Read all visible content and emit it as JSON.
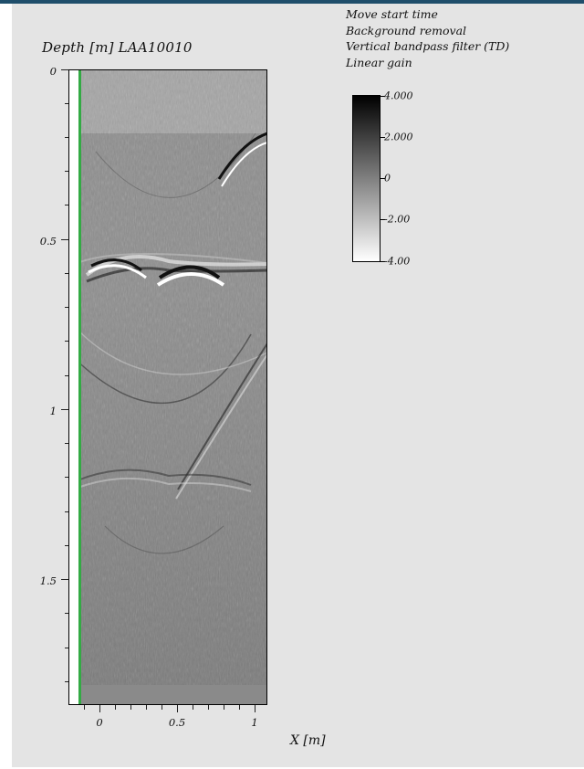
{
  "plot": {
    "title": "Depth [m] LAA10010",
    "x_axis_label": "X [m]"
  },
  "processing_steps": [
    "Move start time",
    "Background removal",
    "Vertical bandpass filter (TD)",
    "Linear gain"
  ],
  "y_ticks": [
    {
      "value": 0,
      "label": "0"
    },
    {
      "value": 0.5,
      "label": "0.5"
    },
    {
      "value": 1,
      "label": "1"
    },
    {
      "value": 1.5,
      "label": "1.5"
    }
  ],
  "x_ticks": [
    {
      "value": 0,
      "label": "0"
    },
    {
      "value": 0.5,
      "label": "0.5"
    },
    {
      "value": 1,
      "label": "1"
    }
  ],
  "colorbar": {
    "max": 4.0,
    "min": -4.0,
    "labels": [
      "4.000",
      "2.000",
      "0",
      "-2.00",
      "-4.00"
    ],
    "colors": {
      "high": "#000000",
      "mid": "#808080",
      "low": "#ffffff"
    }
  },
  "colors": {
    "panel_background": "#e4e4e4",
    "top_bar": "#1f4e6b",
    "trace_marker": "#33aa44"
  }
}
